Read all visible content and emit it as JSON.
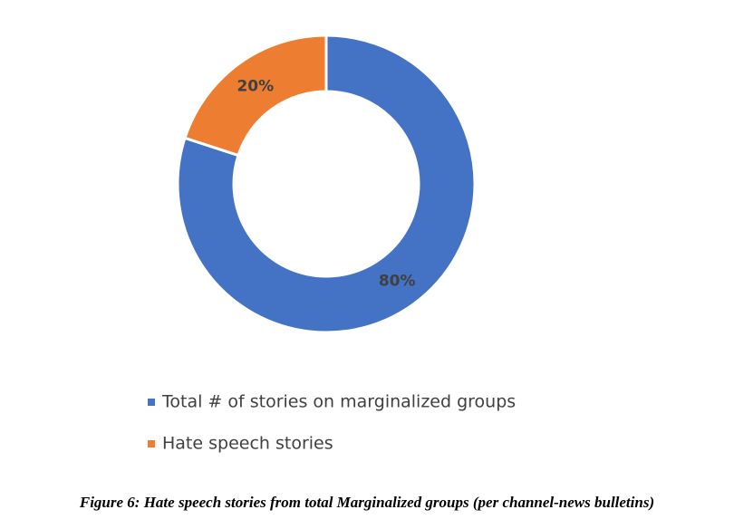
{
  "chart_data": {
    "type": "donut",
    "caption": "Figure 6: Hate speech stories from total Marginalized groups (per channel-news bulletins)",
    "series": [
      {
        "name": "Total # of stories on marginalized groups",
        "color": "#4472c4",
        "values": [
          80
        ],
        "value_labels": [
          "80%"
        ]
      },
      {
        "name": "Hate speech stories",
        "color": "#ed7d31",
        "values": [
          20
        ],
        "value_labels": [
          "20%"
        ]
      }
    ]
  }
}
